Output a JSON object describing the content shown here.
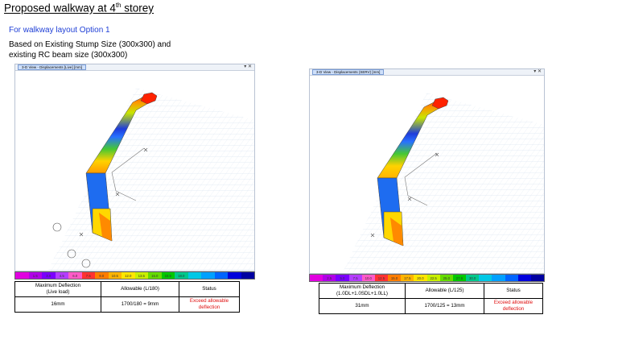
{
  "slide": {
    "title": "Proposed walkway at 4",
    "title_sup": "th",
    "title_suffix": " storey",
    "option": "For walkway layout Option 1",
    "basis_line1": "Based on Existing Stump Size (300x300) and",
    "basis_line2": "existing RC beam size (300x300)"
  },
  "views": [
    {
      "tab": "3-D View - Displacements [Live] [mm]",
      "controls": "▾ ✕",
      "colors": [
        "#e000e0",
        "#b000e8",
        "#7a00ff",
        "#b43cff",
        "#ff5ac8",
        "#ff3232",
        "#ff7d00",
        "#ffb400",
        "#ffe600",
        "#c8f000",
        "#64dc00",
        "#00c800",
        "#00c88c",
        "#00c8e6",
        "#00a0ff",
        "#0064ff",
        "#0000dc",
        "#0000a0"
      ],
      "scale": [
        "",
        "1.5",
        "3.0",
        "4.5",
        "6.0",
        "7.5",
        "9.0",
        "10.5",
        "12.0",
        "13.5",
        "15.0",
        "16.5",
        "18.0",
        "",
        "",
        "",
        "",
        ""
      ],
      "table": {
        "col1_line1": "Maximum Deflection",
        "col1_line2": "(Live load)",
        "col2_header": "Allowable (L/180)",
        "col3_header": "Status",
        "value": "16mm",
        "allowable": "1700/180 = 9mm",
        "status_line1": "Exceed allowable",
        "status_line2": "deflection"
      }
    },
    {
      "tab": "3-D View - Displacements (SERV) [mm]",
      "controls": "▾ ✕",
      "colors": [
        "#e000e0",
        "#b000e8",
        "#7a00ff",
        "#b43cff",
        "#ff5ac8",
        "#ff3232",
        "#ff7d00",
        "#ffb400",
        "#ffe600",
        "#c8f000",
        "#64dc00",
        "#00c800",
        "#00c88c",
        "#00c8e6",
        "#00a0ff",
        "#0064ff",
        "#0000dc",
        "#0000a0"
      ],
      "scale": [
        "",
        "2.5",
        "5.0",
        "7.5",
        "10.0",
        "12.5",
        "15.0",
        "17.5",
        "20.0",
        "22.5",
        "25.0",
        "27.5",
        "30.0",
        "",
        "",
        "",
        "",
        ""
      ],
      "table": {
        "col1_line1": "Maximum Deflection",
        "col1_line2": "(1.0DL+1.0SDL+1.0LL)",
        "col2_header": "Allowable (L/125)",
        "col3_header": "Status",
        "value": "31mm",
        "allowable": "1700/125 = 13mm",
        "status_line1": "Exceed allowable",
        "status_line2": "deflection"
      }
    }
  ]
}
